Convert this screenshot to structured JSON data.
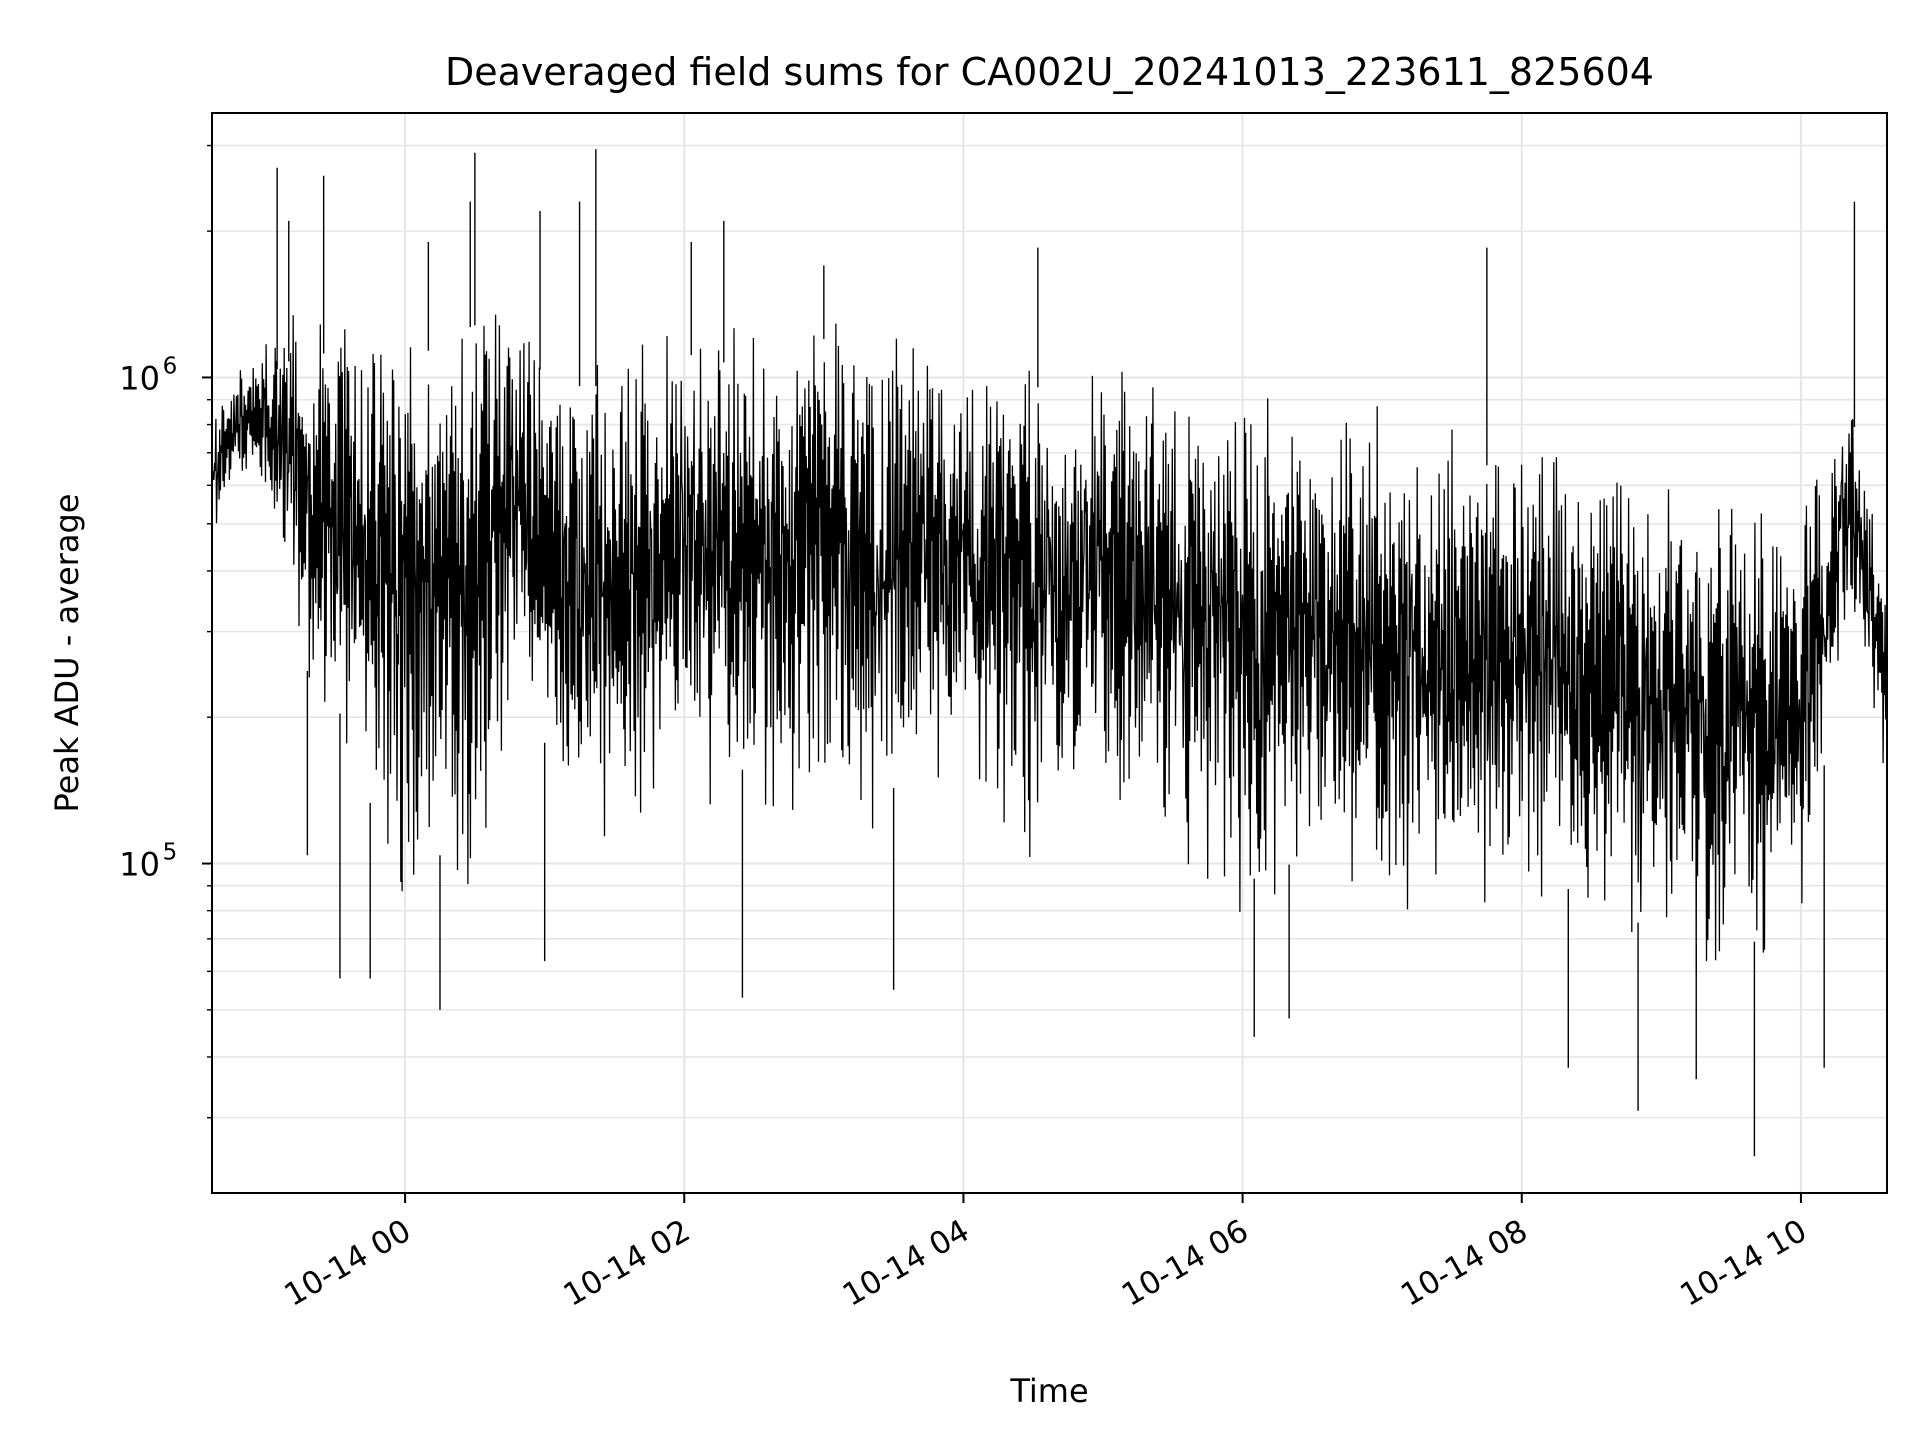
{
  "chart_data": {
    "type": "line",
    "title": "Deaveraged field sums for CA002U_20241013_223611_825604",
    "xlabel": "Time",
    "ylabel": "Peak ADU - average",
    "y_scale": "log",
    "xlim": [
      "2024-10-13 22:37",
      "2024-10-14 10:37"
    ],
    "ylim": [
      21000,
      3500000
    ],
    "x_ticks": [
      {
        "value": "2024-10-14 00:00",
        "label": "10-14 00"
      },
      {
        "value": "2024-10-14 02:00",
        "label": "10-14 02"
      },
      {
        "value": "2024-10-14 04:00",
        "label": "10-14 04"
      },
      {
        "value": "2024-10-14 06:00",
        "label": "10-14 06"
      },
      {
        "value": "2024-10-14 08:00",
        "label": "10-14 08"
      },
      {
        "value": "2024-10-14 10:00",
        "label": "10-14 10"
      }
    ],
    "y_ticks": [
      {
        "value": 100000,
        "base": "10",
        "exp": "5"
      },
      {
        "value": 1000000,
        "base": "10",
        "exp": "6"
      }
    ],
    "grid": true,
    "legend": "none",
    "line_color": "#000000",
    "envelope": [
      {
        "t": "2024-10-13 22:37",
        "hi": 900000,
        "lo": 450000
      },
      {
        "t": "2024-10-13 22:50",
        "hi": 1100000,
        "lo": 600000
      },
      {
        "t": "2024-10-13 23:05",
        "hi": 1300000,
        "lo": 500000
      },
      {
        "t": "2024-10-13 23:15",
        "hi": 1400000,
        "lo": 200000
      },
      {
        "t": "2024-10-13 23:35",
        "hi": 1400000,
        "lo": 150000
      },
      {
        "t": "2024-10-13 23:55",
        "hi": 1200000,
        "lo": 70000
      },
      {
        "t": "2024-10-14 00:15",
        "hi": 1500000,
        "lo": 80000
      },
      {
        "t": "2024-10-14 00:30",
        "hi": 1600000,
        "lo": 70000
      },
      {
        "t": "2024-10-14 00:45",
        "hi": 1500000,
        "lo": 200000
      },
      {
        "t": "2024-10-14 01:05",
        "hi": 1200000,
        "lo": 120000
      },
      {
        "t": "2024-10-14 01:30",
        "hi": 1200000,
        "lo": 90000
      },
      {
        "t": "2024-10-14 02:00",
        "hi": 1400000,
        "lo": 120000
      },
      {
        "t": "2024-10-14 02:30",
        "hi": 1300000,
        "lo": 120000
      },
      {
        "t": "2024-10-14 03:00",
        "hi": 1500000,
        "lo": 100000
      },
      {
        "t": "2024-10-14 03:30",
        "hi": 1300000,
        "lo": 110000
      },
      {
        "t": "2024-10-14 04:00",
        "hi": 1200000,
        "lo": 150000
      },
      {
        "t": "2024-10-14 04:30",
        "hi": 1200000,
        "lo": 90000
      },
      {
        "t": "2024-10-14 05:00",
        "hi": 1100000,
        "lo": 120000
      },
      {
        "t": "2024-10-14 05:30",
        "hi": 1000000,
        "lo": 90000
      },
      {
        "t": "2024-10-14 06:00",
        "hi": 1000000,
        "lo": 70000
      },
      {
        "t": "2024-10-14 06:30",
        "hi": 950000,
        "lo": 80000
      },
      {
        "t": "2024-10-14 07:00",
        "hi": 900000,
        "lo": 70000
      },
      {
        "t": "2024-10-14 07:30",
        "hi": 850000,
        "lo": 75000
      },
      {
        "t": "2024-10-14 08:00",
        "hi": 800000,
        "lo": 75000
      },
      {
        "t": "2024-10-14 08:30",
        "hi": 700000,
        "lo": 65000
      },
      {
        "t": "2024-10-14 09:00",
        "hi": 650000,
        "lo": 55000
      },
      {
        "t": "2024-10-14 09:30",
        "hi": 600000,
        "lo": 50000
      },
      {
        "t": "2024-10-14 10:00",
        "hi": 600000,
        "lo": 60000
      },
      {
        "t": "2024-10-14 10:20",
        "hi": 1200000,
        "lo": 250000
      },
      {
        "t": "2024-10-14 10:37",
        "hi": 400000,
        "lo": 120000
      }
    ],
    "spikes_high": [
      {
        "t": "2024-10-13 23:05",
        "v": 2700000
      },
      {
        "t": "2024-10-13 23:10",
        "v": 2100000
      },
      {
        "t": "2024-10-13 23:25",
        "v": 2600000
      },
      {
        "t": "2024-10-14 00:10",
        "v": 1900000
      },
      {
        "t": "2024-10-14 00:28",
        "v": 2300000
      },
      {
        "t": "2024-10-14 00:30",
        "v": 2900000
      },
      {
        "t": "2024-10-14 00:58",
        "v": 2200000
      },
      {
        "t": "2024-10-14 01:15",
        "v": 2300000
      },
      {
        "t": "2024-10-14 01:22",
        "v": 2950000
      },
      {
        "t": "2024-10-14 02:03",
        "v": 1900000
      },
      {
        "t": "2024-10-14 02:17",
        "v": 2100000
      },
      {
        "t": "2024-10-14 03:00",
        "v": 1700000
      },
      {
        "t": "2024-10-14 04:32",
        "v": 1850000
      },
      {
        "t": "2024-10-14 07:45",
        "v": 1850000
      },
      {
        "t": "2024-10-14 10:23",
        "v": 2300000
      }
    ],
    "spikes_low": [
      {
        "t": "2024-10-13 23:18",
        "v": 104000
      },
      {
        "t": "2024-10-13 23:32",
        "v": 58000
      },
      {
        "t": "2024-10-13 23:45",
        "v": 58000
      },
      {
        "t": "2024-10-14 00:15",
        "v": 50000
      },
      {
        "t": "2024-10-14 01:00",
        "v": 63000
      },
      {
        "t": "2024-10-14 02:25",
        "v": 53000
      },
      {
        "t": "2024-10-14 03:30",
        "v": 55000
      },
      {
        "t": "2024-10-14 06:05",
        "v": 44000
      },
      {
        "t": "2024-10-14 06:20",
        "v": 48000
      },
      {
        "t": "2024-10-14 08:20",
        "v": 38000
      },
      {
        "t": "2024-10-14 08:50",
        "v": 31000
      },
      {
        "t": "2024-10-14 09:15",
        "v": 36000
      },
      {
        "t": "2024-10-14 09:40",
        "v": 25000
      },
      {
        "t": "2024-10-14 10:10",
        "v": 38000
      }
    ]
  }
}
